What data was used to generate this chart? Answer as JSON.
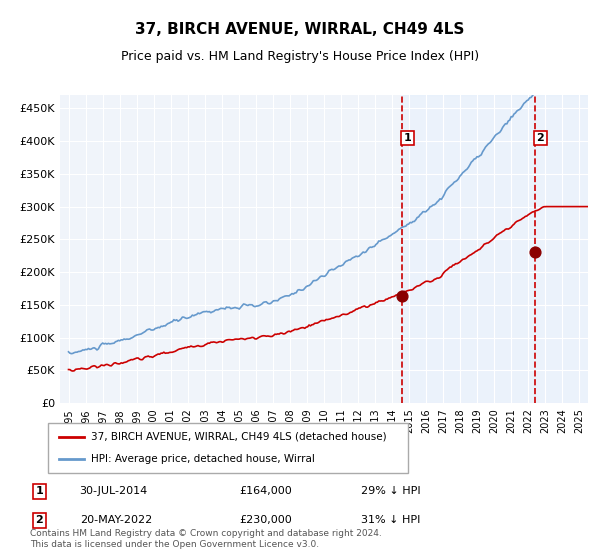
{
  "title": "37, BIRCH AVENUE, WIRRAL, CH49 4LS",
  "subtitle": "Price paid vs. HM Land Registry's House Price Index (HPI)",
  "xlabel": "",
  "ylabel": "",
  "ylim": [
    0,
    470000
  ],
  "yticks": [
    0,
    50000,
    100000,
    150000,
    200000,
    250000,
    300000,
    350000,
    400000,
    450000
  ],
  "ytick_labels": [
    "£0",
    "£50K",
    "£100K",
    "£150K",
    "£200K",
    "£250K",
    "£300K",
    "£350K",
    "£400K",
    "£450K"
  ],
  "hpi_color": "#6699cc",
  "price_color": "#cc0000",
  "marker_color": "#8b0000",
  "dashed_line_color": "#cc0000",
  "shaded_color": "#ddeeff",
  "marker1_date": 2014.58,
  "marker1_price": 164000,
  "marker2_date": 2022.38,
  "marker2_price": 230000,
  "legend_label1": "37, BIRCH AVENUE, WIRRAL, CH49 4LS (detached house)",
  "legend_label2": "HPI: Average price, detached house, Wirral",
  "annotation1": [
    "1",
    "30-JUL-2014",
    "£164,000",
    "29% ↓ HPI"
  ],
  "annotation2": [
    "2",
    "20-MAY-2022",
    "£230,000",
    "31% ↓ HPI"
  ],
  "footnote": "Contains HM Land Registry data © Crown copyright and database right 2024.\nThis data is licensed under the Open Government Licence v3.0.",
  "title_fontsize": 11,
  "subtitle_fontsize": 9,
  "tick_fontsize": 8,
  "background_color": "#ffffff",
  "plot_bg_color": "#f0f4fa"
}
